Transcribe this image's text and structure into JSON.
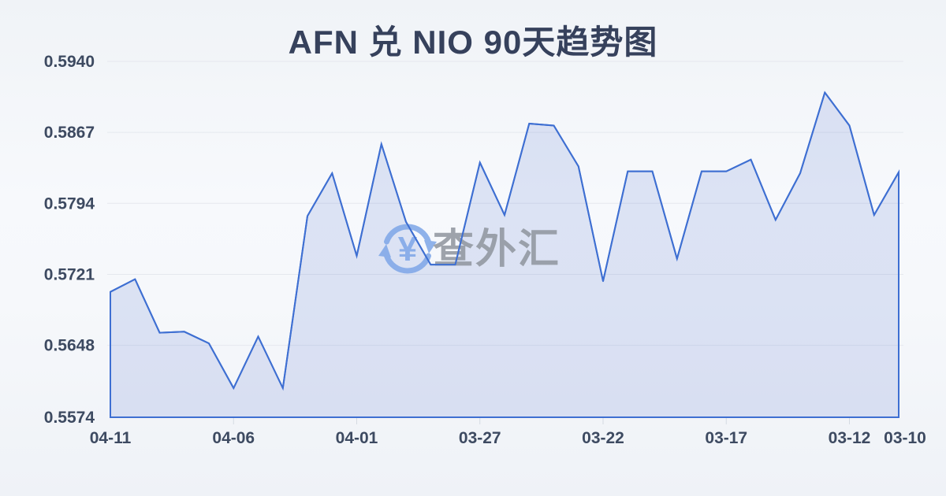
{
  "header": {
    "title": "AFN 兑 NIO 90天趋势图"
  },
  "watermark": {
    "icon": "currency-exchange-refresh-icon",
    "symbol": "¥",
    "text": "查外汇",
    "icon_color": "#7ea6e8",
    "text_color": "#8f959e"
  },
  "chart_data": {
    "type": "area",
    "title": "AFN 兑 NIO 90天趋势图",
    "xlabel": "",
    "ylabel": "",
    "x": [
      "04-11",
      "04-10",
      "04-09",
      "04-08",
      "04-07",
      "04-06",
      "04-05",
      "04-04",
      "04-03",
      "04-02",
      "04-01",
      "03-31",
      "03-30",
      "03-29",
      "03-28",
      "03-27",
      "03-26",
      "03-25",
      "03-24",
      "03-23",
      "03-22",
      "03-21",
      "03-20",
      "03-19",
      "03-18",
      "03-17",
      "03-16",
      "03-15",
      "03-14",
      "03-13",
      "03-12",
      "03-11",
      "03-10"
    ],
    "values": [
      0.5703,
      0.5716,
      0.5661,
      0.5662,
      0.565,
      0.5604,
      0.5657,
      0.5604,
      0.5781,
      0.5825,
      0.574,
      0.5855,
      0.5775,
      0.5731,
      0.5731,
      0.5836,
      0.5782,
      0.5876,
      0.5874,
      0.5832,
      0.5714,
      0.5827,
      0.5827,
      0.5737,
      0.5827,
      0.5827,
      0.5839,
      0.5777,
      0.5825,
      0.5908,
      0.5874,
      0.5782,
      0.5826
    ],
    "x_tick_indices": [
      0,
      5,
      10,
      15,
      20,
      25,
      30,
      32
    ],
    "y_tick_labels": [
      "0.5940",
      "0.5867",
      "0.5794",
      "0.5721",
      "0.5648",
      "0.5574"
    ],
    "ylim": [
      0.5574,
      0.594
    ],
    "grid": true,
    "legend": "none",
    "line_color": "#3e6fd2",
    "fill_color": "rgba(88,120,205,0.17)",
    "grid_color": "#e5e8ee",
    "tick_color": "#d5dae2",
    "label_color": "#3d4a61"
  }
}
